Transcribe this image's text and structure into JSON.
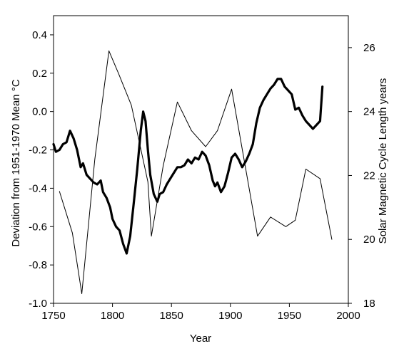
{
  "chart_data": {
    "type": "line",
    "title": "",
    "xlabel": "Year",
    "ylabel": "Deviation from 1951-1970 Mean °C",
    "y2label": "Solar Magnetic Cycle Length years",
    "xlim": [
      1750,
      2000
    ],
    "ylim": [
      -1.0,
      0.5
    ],
    "y2lim": [
      27,
      18
    ],
    "y2_inverted": true,
    "grid": false,
    "legend": "none",
    "x_ticks": [
      1750,
      1800,
      1850,
      1900,
      1950,
      2000
    ],
    "x_tick_labels": [
      "1750",
      "1800",
      "1850",
      "1900",
      "1950",
      "2000"
    ],
    "y_ticks": [
      -1.0,
      -0.8,
      -0.6,
      -0.4,
      -0.2,
      0.0,
      0.2,
      0.4
    ],
    "y_tick_labels": [
      "-1.0",
      "-0.8",
      "-0.6",
      "-0.4",
      "-0.2",
      "0.0",
      "0.2",
      "0.4"
    ],
    "y2_ticks": [
      18,
      20,
      22,
      24,
      26
    ],
    "y2_tick_labels": [
      "18",
      "20",
      "22",
      "24",
      "26"
    ],
    "series": [
      {
        "axis": "left",
        "style": "thick",
        "color": "#000000",
        "x": [
          1750,
          1752,
          1755,
          1758,
          1761,
          1764,
          1767,
          1770,
          1773,
          1775,
          1778,
          1781,
          1784,
          1787,
          1790,
          1792,
          1795,
          1798,
          1800,
          1803,
          1806,
          1809,
          1812,
          1815,
          1818,
          1821,
          1824,
          1826,
          1828,
          1830,
          1832,
          1835,
          1838,
          1840,
          1843,
          1846,
          1849,
          1852,
          1855,
          1858,
          1861,
          1864,
          1867,
          1870,
          1873,
          1876,
          1879,
          1882,
          1885,
          1887,
          1889,
          1892,
          1895,
          1898,
          1901,
          1904,
          1907,
          1910,
          1913,
          1916,
          1919,
          1922,
          1925,
          1928,
          1931,
          1934,
          1937,
          1940,
          1943,
          1946,
          1949,
          1952,
          1955,
          1958,
          1961,
          1964,
          1967,
          1970,
          1973,
          1976,
          1978
        ],
        "y": [
          -0.17,
          -0.21,
          -0.2,
          -0.17,
          -0.16,
          -0.1,
          -0.14,
          -0.2,
          -0.29,
          -0.27,
          -0.33,
          -0.35,
          -0.37,
          -0.38,
          -0.36,
          -0.42,
          -0.45,
          -0.5,
          -0.56,
          -0.6,
          -0.62,
          -0.69,
          -0.74,
          -0.65,
          -0.48,
          -0.3,
          -0.1,
          0.0,
          -0.05,
          -0.2,
          -0.33,
          -0.43,
          -0.47,
          -0.43,
          -0.42,
          -0.38,
          -0.35,
          -0.32,
          -0.29,
          -0.29,
          -0.28,
          -0.25,
          -0.27,
          -0.24,
          -0.25,
          -0.21,
          -0.23,
          -0.28,
          -0.36,
          -0.39,
          -0.37,
          -0.42,
          -0.39,
          -0.32,
          -0.24,
          -0.22,
          -0.25,
          -0.29,
          -0.26,
          -0.22,
          -0.17,
          -0.06,
          0.02,
          0.06,
          0.09,
          0.12,
          0.14,
          0.17,
          0.17,
          0.13,
          0.11,
          0.09,
          0.01,
          0.02,
          -0.02,
          -0.05,
          -0.07,
          -0.09,
          -0.07,
          -0.05,
          0.13
        ]
      },
      {
        "axis": "right",
        "style": "thin",
        "color": "#000000",
        "x": [
          1755,
          1766,
          1774,
          1785,
          1797,
          1805,
          1816,
          1830,
          1833,
          1843,
          1855,
          1867,
          1879,
          1889,
          1901,
          1913,
          1923,
          1934,
          1947,
          1955,
          1964,
          1976,
          1986
        ],
        "y": [
          21.5,
          20.2,
          18.3,
          22.5,
          25.9,
          25.2,
          24.2,
          21.8,
          20.1,
          22.3,
          24.3,
          23.4,
          22.9,
          23.4,
          24.7,
          22.2,
          20.1,
          20.7,
          20.4,
          20.6,
          22.2,
          21.9,
          20.0
        ]
      }
    ]
  }
}
